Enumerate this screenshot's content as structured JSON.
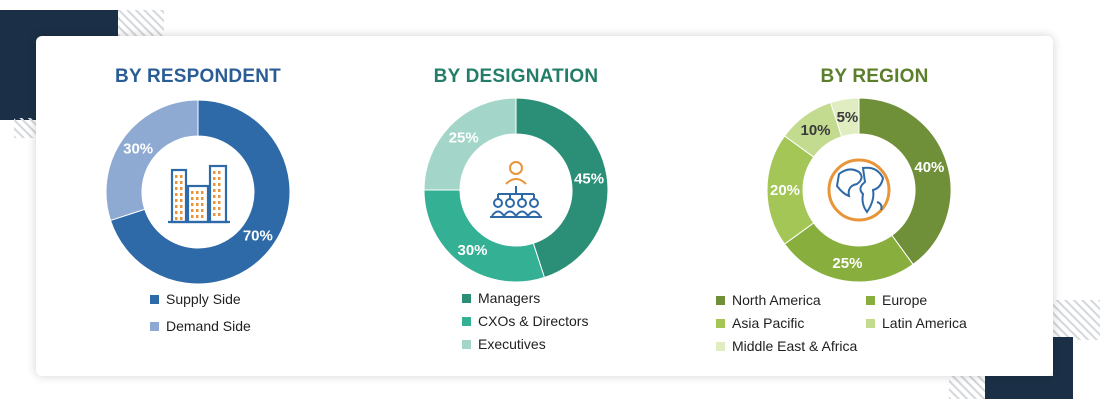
{
  "chart_data": [
    {
      "type": "pie",
      "title": "BY RESPONDENT",
      "categories": [
        "Supply Side",
        "Demand Side"
      ],
      "values": [
        70,
        30
      ],
      "labels": [
        "70%",
        "30%"
      ],
      "colors": [
        "#2e6aa7",
        "#8eaad3"
      ],
      "title_color": "#2a5d96",
      "center_icon": "buildings-icon",
      "legend_placement": "bottom"
    },
    {
      "type": "pie",
      "title": "BY DESIGNATION",
      "categories": [
        "Managers",
        "CXOs & Directors",
        "Executives"
      ],
      "values": [
        45,
        30,
        25
      ],
      "labels": [
        "45%",
        "30%",
        "25%"
      ],
      "colors": [
        "#2b8f77",
        "#34b095",
        "#a3d6c9"
      ],
      "title_color": "#247d69",
      "center_icon": "hierarchy-people-icon",
      "legend_placement": "bottom"
    },
    {
      "type": "pie",
      "title": "BY REGION",
      "categories": [
        "North America",
        "Europe",
        "Asia Pacific",
        "Latin America",
        "Middle East & Africa"
      ],
      "values": [
        40,
        25,
        20,
        10,
        5
      ],
      "labels": [
        "40%",
        "25%",
        "20%",
        "10%",
        "5%"
      ],
      "colors": [
        "#6f8f38",
        "#88af3d",
        "#a3c657",
        "#c3db8f",
        "#dfedc1"
      ],
      "title_color": "#5b7f2a",
      "center_icon": "globe-icon",
      "legend_placement": "bottom"
    }
  ]
}
